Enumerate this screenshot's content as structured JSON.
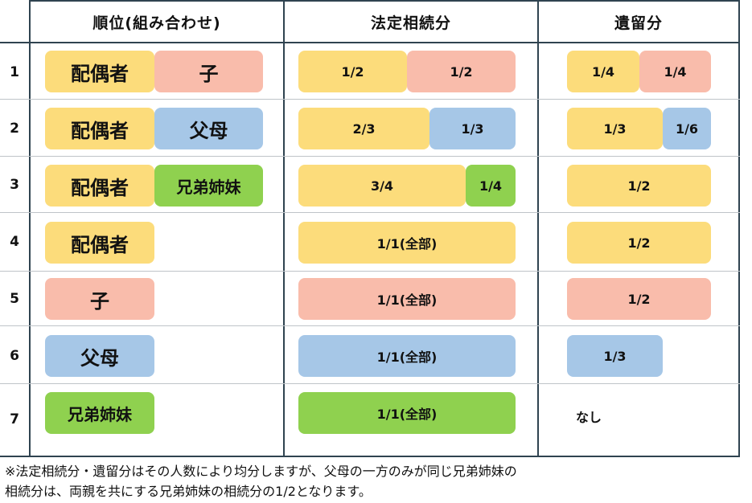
{
  "headers": {
    "rank": "順位(組み合わせ)",
    "legal_share": "法定相続分",
    "reserved_share": "遺留分"
  },
  "rows": [
    {
      "num": "1",
      "heirs": [
        "配偶者",
        "子"
      ],
      "legal": [
        "1/2",
        "1/2"
      ],
      "reserved": [
        "1/4",
        "1/4"
      ]
    },
    {
      "num": "2",
      "heirs": [
        "配偶者",
        "父母"
      ],
      "legal": [
        "2/3",
        "1/3"
      ],
      "reserved": [
        "1/3",
        "1/6"
      ]
    },
    {
      "num": "3",
      "heirs": [
        "配偶者",
        "兄弟姉妹"
      ],
      "legal": [
        "3/4",
        "1/4"
      ],
      "reserved": [
        "1/2"
      ]
    },
    {
      "num": "4",
      "heirs": [
        "配偶者"
      ],
      "legal": [
        "1/1(全部)"
      ],
      "reserved": [
        "1/2"
      ]
    },
    {
      "num": "5",
      "heirs": [
        "子"
      ],
      "legal": [
        "1/1(全部)"
      ],
      "reserved": [
        "1/2"
      ]
    },
    {
      "num": "6",
      "heirs": [
        "父母"
      ],
      "legal": [
        "1/1(全部)"
      ],
      "reserved": [
        "1/3"
      ]
    },
    {
      "num": "7",
      "heirs": [
        "兄弟姉妹"
      ],
      "legal": [
        "1/1(全部)"
      ],
      "reserved_text": "なし"
    }
  ],
  "colors": {
    "spouse": "#fcdc7b",
    "child": "#f9bcab",
    "parents": "#a6c7e7",
    "siblings": "#8fd14f"
  },
  "note": {
    "line1": "※法定相続分・遺留分はその人数により均分しますが、父母の一方のみが同じ兄弟姉妹の",
    "line2": "相続分は、両親を共にする兄弟姉妹の相続分の1/2となります。"
  }
}
